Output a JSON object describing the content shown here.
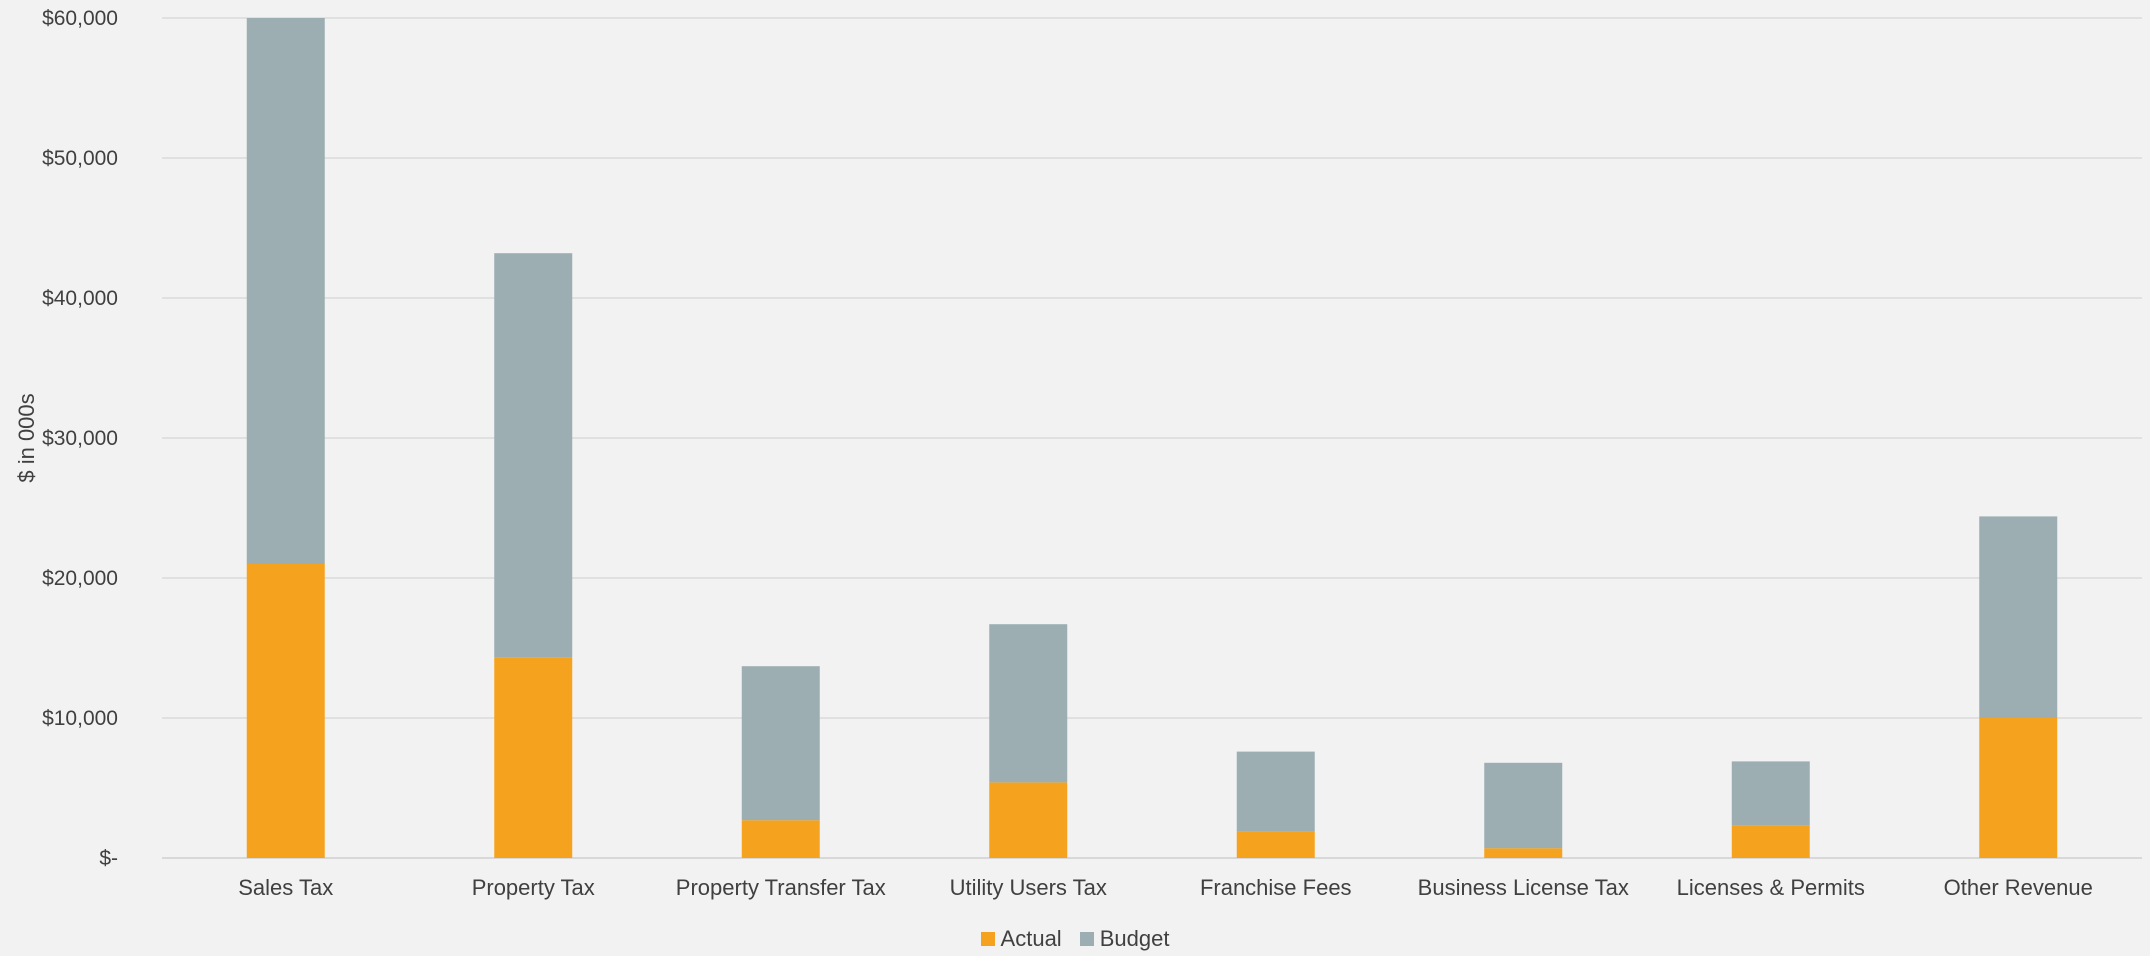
{
  "chart_data": {
    "type": "bar",
    "stacked": true,
    "categories": [
      "Sales Tax",
      "Property Tax",
      "Property Transfer Tax",
      "Utility Users Tax",
      "Franchise Fees",
      "Business License Tax",
      "Licenses & Permits",
      "Other Revenue"
    ],
    "series": [
      {
        "name": "Actual",
        "color": "#f5a31e",
        "values": [
          21000,
          14300,
          2700,
          5400,
          1900,
          700,
          2300,
          10000
        ]
      },
      {
        "name": "Budget",
        "color": "#9caeb2",
        "values": [
          39000,
          28900,
          11000,
          11300,
          5700,
          6100,
          4600,
          14400
        ]
      }
    ],
    "ylabel": "$ in 000s",
    "xlabel": "",
    "ylim": [
      0,
      60000
    ],
    "yticks": [
      {
        "value": 0,
        "label": "$-"
      },
      {
        "value": 10000,
        "label": "$10,000"
      },
      {
        "value": 20000,
        "label": "$20,000"
      },
      {
        "value": 30000,
        "label": "$30,000"
      },
      {
        "value": 40000,
        "label": "$40,000"
      },
      {
        "value": 50000,
        "label": "$50,000"
      },
      {
        "value": 60000,
        "label": "$60,000"
      }
    ],
    "grid": true,
    "legend_position": "bottom-center"
  }
}
